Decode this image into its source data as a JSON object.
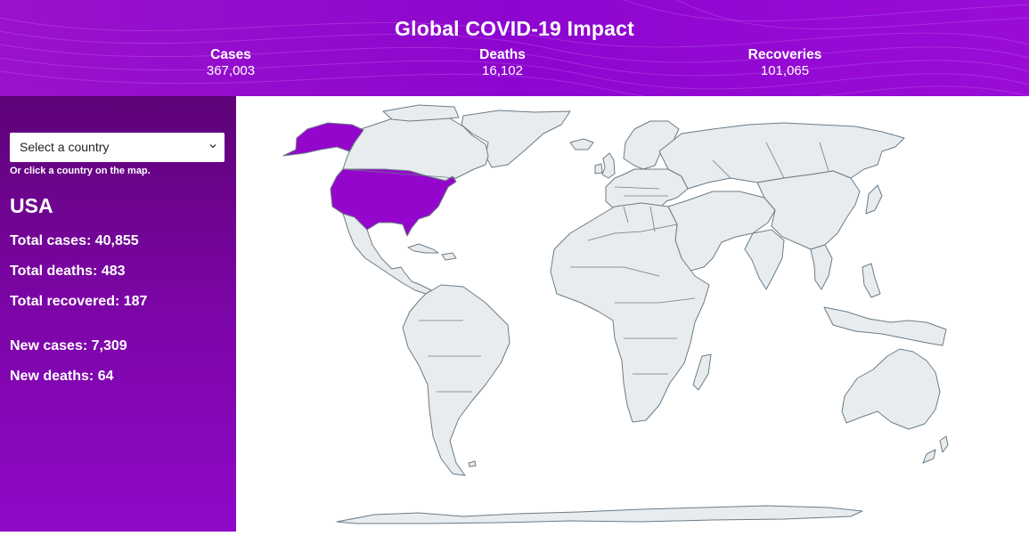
{
  "header": {
    "title": "Global COVID-19 Impact",
    "stats": [
      {
        "label": "Cases",
        "value": "367,003"
      },
      {
        "label": "Deaths",
        "value": "16,102"
      },
      {
        "label": "Recoveries",
        "value": "101,065"
      }
    ]
  },
  "sidebar": {
    "select_value": "Select a country",
    "hint": "Or click a country on the map.",
    "country": "USA",
    "total_cases": "Total cases: 40,855",
    "total_deaths": "Total deaths: 483",
    "total_recovered": "Total recovered: 187",
    "new_cases": "New cases: 7,309",
    "new_deaths": "New deaths: 64"
  },
  "map": {
    "selected_country": "USA"
  },
  "colors": {
    "header_purple": "#8d06cf",
    "sidebar_top": "#5e0276",
    "sidebar_bottom": "#8f09c9",
    "selected_fill": "#9506cc",
    "land_fill": "#e8ecef",
    "border": "#6b7b86"
  }
}
